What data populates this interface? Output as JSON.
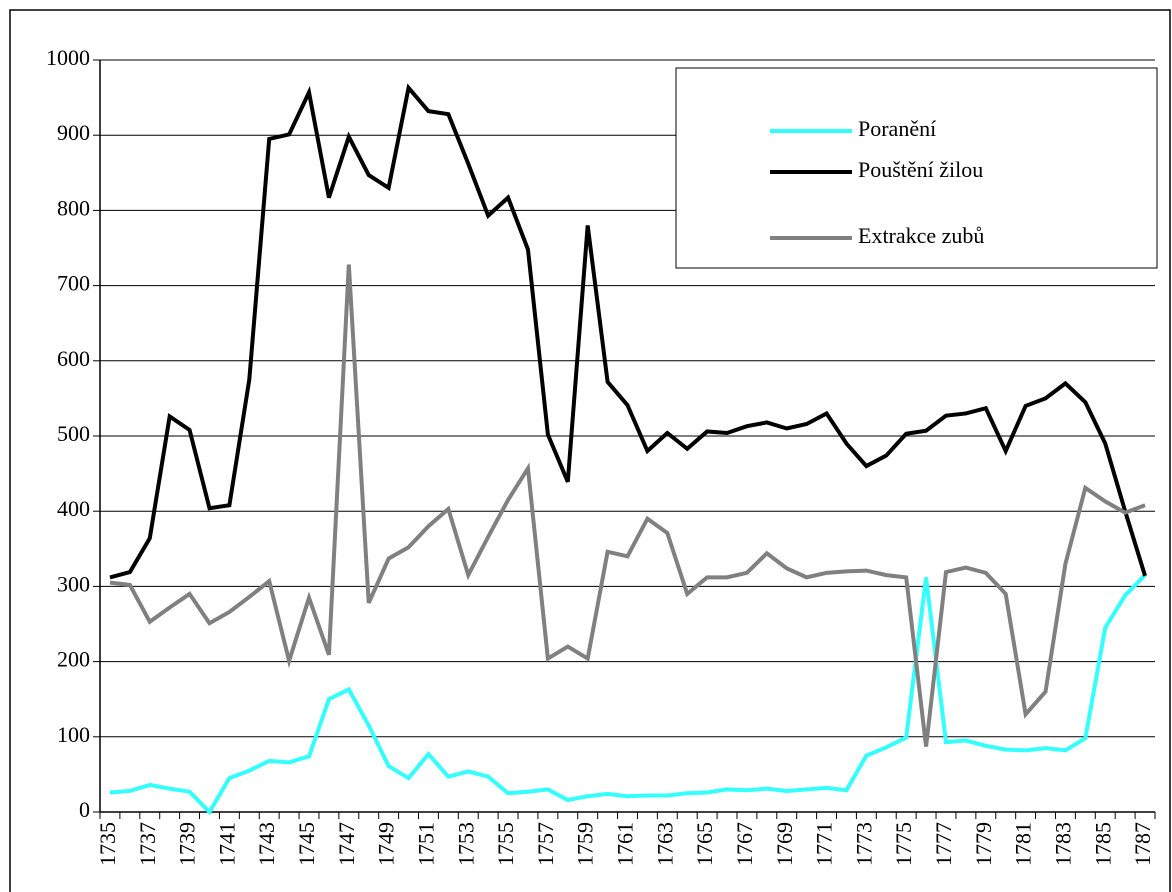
{
  "chart_data": {
    "type": "line",
    "categories": [
      "1735",
      null,
      "1737",
      null,
      "1739",
      null,
      "1741",
      null,
      "1743",
      null,
      "1745",
      null,
      "1747",
      null,
      "1749",
      null,
      "1751",
      null,
      "1753",
      null,
      "1755",
      null,
      "1757",
      null,
      "1759",
      null,
      "1761",
      null,
      "1763",
      null,
      "1765",
      null,
      "1767",
      null,
      "1769",
      null,
      "1771",
      null,
      "1773",
      null,
      "1775",
      null,
      "1777",
      null,
      "1779",
      null,
      "1781",
      null,
      "1783",
      null,
      "1785",
      null,
      "1787"
    ],
    "series": [
      {
        "name": "Poranění",
        "color": "#33ffff",
        "values": [
          26,
          28,
          36,
          31,
          27,
          0,
          45,
          55,
          68,
          66,
          74,
          150,
          163,
          115,
          61,
          45,
          77,
          47,
          54,
          47,
          25,
          27,
          30,
          16,
          21,
          24,
          21,
          22,
          22,
          25,
          26,
          30,
          29,
          31,
          28,
          30,
          32,
          29,
          75,
          86,
          99,
          312,
          93,
          95,
          88,
          83,
          82,
          85,
          82,
          98,
          245,
          288,
          315
        ]
      },
      {
        "name": "Pouštění žilou",
        "color": "#000000",
        "values": [
          312,
          319,
          364,
          526,
          508,
          404,
          408,
          575,
          895,
          901,
          957,
          817,
          898,
          847,
          830,
          963,
          932,
          928,
          862,
          793,
          817,
          748,
          502,
          439,
          780,
          572,
          541,
          480,
          504,
          483,
          506,
          504,
          513,
          518,
          510,
          516,
          530,
          490,
          460,
          474,
          503,
          507,
          527,
          530,
          537,
          480,
          540,
          550,
          570,
          545,
          490,
          400,
          314
        ]
      },
      {
        "name": "Extrakce zubů",
        "color": "#808080",
        "values": [
          305,
          302,
          253,
          272,
          290,
          251,
          266,
          286,
          307,
          201,
          285,
          209,
          728,
          278,
          337,
          352,
          380,
          403,
          315,
          366,
          415,
          457,
          204,
          220,
          204,
          346,
          340,
          390,
          371,
          290,
          312,
          312,
          318,
          344,
          324,
          312,
          318,
          320,
          321,
          315,
          312,
          87,
          319,
          325,
          318,
          290,
          130,
          160,
          330,
          431,
          413,
          398,
          408
        ]
      }
    ],
    "ylim": [
      0,
      1000
    ],
    "yticks": [
      0,
      100,
      200,
      300,
      400,
      500,
      600,
      700,
      800,
      900,
      1000
    ],
    "grid": true,
    "legend": "upper right"
  }
}
